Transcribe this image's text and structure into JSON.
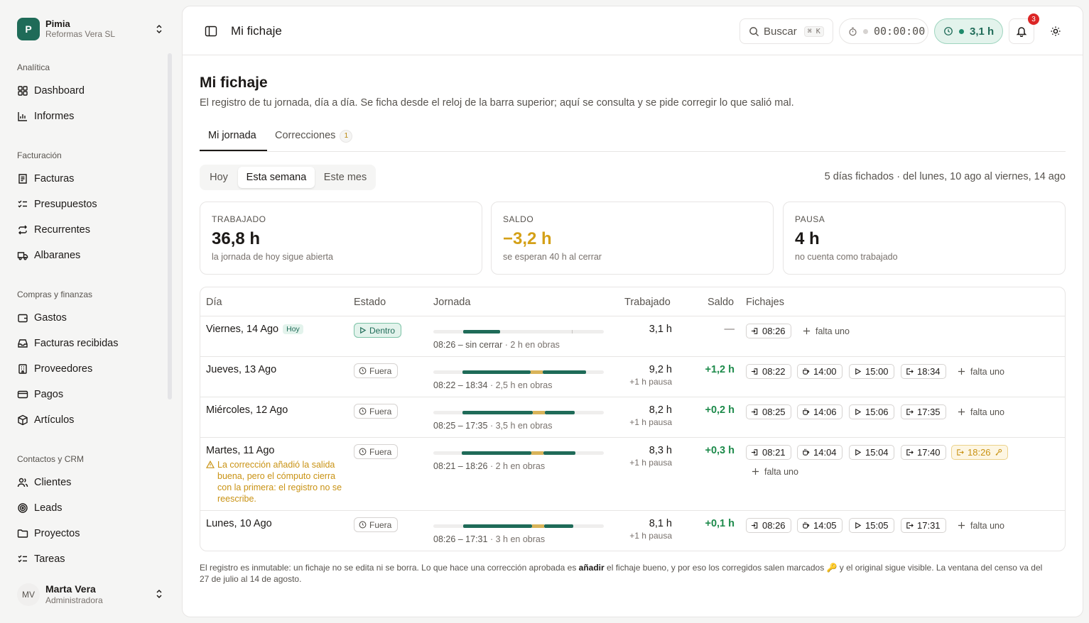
{
  "org": {
    "initial": "P",
    "name": "Pimia",
    "company": "Reformas Vera SL"
  },
  "sidebar": {
    "sections": [
      {
        "title": "Analítica",
        "items": [
          "Dashboard",
          "Informes"
        ]
      },
      {
        "title": "Facturación",
        "items": [
          "Facturas",
          "Presupuestos",
          "Recurrentes",
          "Albaranes"
        ]
      },
      {
        "title": "Compras y finanzas",
        "items": [
          "Gastos",
          "Facturas recibidas",
          "Proveedores",
          "Pagos",
          "Artículos"
        ]
      },
      {
        "title": "Contactos y CRM",
        "items": [
          "Clientes",
          "Leads",
          "Proyectos",
          "Tareas"
        ]
      }
    ]
  },
  "user": {
    "initials": "MV",
    "name": "Marta Vera",
    "role": "Administradora"
  },
  "topbar": {
    "title": "Mi fichaje",
    "search": "Buscar",
    "shortcut": "⌘ K",
    "timer": "00:00:00",
    "hours": "3,1 h",
    "notifications": "3"
  },
  "page": {
    "title": "Mi fichaje",
    "subtitle": "El registro de tu jornada, día a día. Se ficha desde el reloj de la barra superior; aquí se consulta y se pide corregir lo que salió mal.",
    "tabs": [
      {
        "label": "Mi jornada"
      },
      {
        "label": "Correcciones",
        "count": "1"
      }
    ],
    "periods": [
      "Hoy",
      "Esta semana",
      "Este mes"
    ],
    "range_info": "5 días fichados · del lunes, 10 ago al viernes, 14 ago"
  },
  "cards": [
    {
      "label": "TRABAJADO",
      "value": "36,8 h",
      "note": "la jornada de hoy sigue abierta"
    },
    {
      "label": "SALDO",
      "value": "−3,2 h",
      "note": "se esperan 40 h al cerrar"
    },
    {
      "label": "PAUSA",
      "value": "4 h",
      "note": "no cuenta como trabajado"
    }
  ],
  "table": {
    "headers": {
      "day": "Día",
      "status": "Estado",
      "jornada": "Jornada",
      "worked": "Trabajado",
      "saldo": "Saldo",
      "punches": "Fichajes"
    },
    "rows": [
      {
        "day": "Viernes, 14 Ago",
        "badge": "Hoy",
        "status": "Dentro",
        "range": "08:26 – sin cerrar",
        "obras": "· 2 h en obras",
        "worked": "3,1 h",
        "pause": "",
        "saldo": "—",
        "punches": [
          "08:26"
        ],
        "missing": "falta uno"
      },
      {
        "day": "Jueves, 13 Ago",
        "status": "Fuera",
        "range": "08:22 – 18:34",
        "obras": "· 2,5 h en obras",
        "worked": "9,2 h",
        "pause": "+1 h pausa",
        "saldo": "+1,2 h",
        "punches": [
          "08:22",
          "14:00",
          "15:00",
          "18:34"
        ],
        "missing": "falta uno"
      },
      {
        "day": "Miércoles, 12 Ago",
        "status": "Fuera",
        "range": "08:25 – 17:35",
        "obras": "· 3,5 h en obras",
        "worked": "8,2 h",
        "pause": "+1 h pausa",
        "saldo": "+0,2 h",
        "punches": [
          "08:25",
          "14:06",
          "15:06",
          "17:35"
        ],
        "missing": "falta uno"
      },
      {
        "day": "Martes, 11 Ago",
        "status": "Fuera",
        "warning": "La corrección añadió la salida buena, pero el cómputo cierra con la primera: el registro no se reescribe.",
        "range": "08:21 – 18:26",
        "obras": "· 2 h en obras",
        "worked": "8,3 h",
        "pause": "+1 h pausa",
        "saldo": "+0,3 h",
        "punches": [
          "08:21",
          "14:04",
          "15:04",
          "17:40",
          "18:26"
        ],
        "missing": "falta uno"
      },
      {
        "day": "Lunes, 10 Ago",
        "status": "Fuera",
        "range": "08:26 – 17:31",
        "obras": "· 3 h en obras",
        "worked": "8,1 h",
        "pause": "+1 h pausa",
        "saldo": "+0,1 h",
        "punches": [
          "08:26",
          "14:05",
          "15:05",
          "17:31"
        ],
        "missing": "falta uno"
      }
    ]
  },
  "footnote": {
    "part1": "El registro es inmutable: un fichaje no se edita ni se borra. Lo que hace una corrección aprobada es ",
    "bold": "añadir",
    "part2": " el fichaje bueno, y por eso los corregidos salen marcados 🔑 y el original sigue visible. La ventana del censo va del 27 de julio al 14 de agosto."
  },
  "colors": {
    "brand": "#1f6b58",
    "worked_bar": "#1f6b58",
    "pause_bar": "#d9b45a",
    "positive": "#1c8a4a",
    "warning": "#c99213",
    "alert": "#dc2626"
  }
}
